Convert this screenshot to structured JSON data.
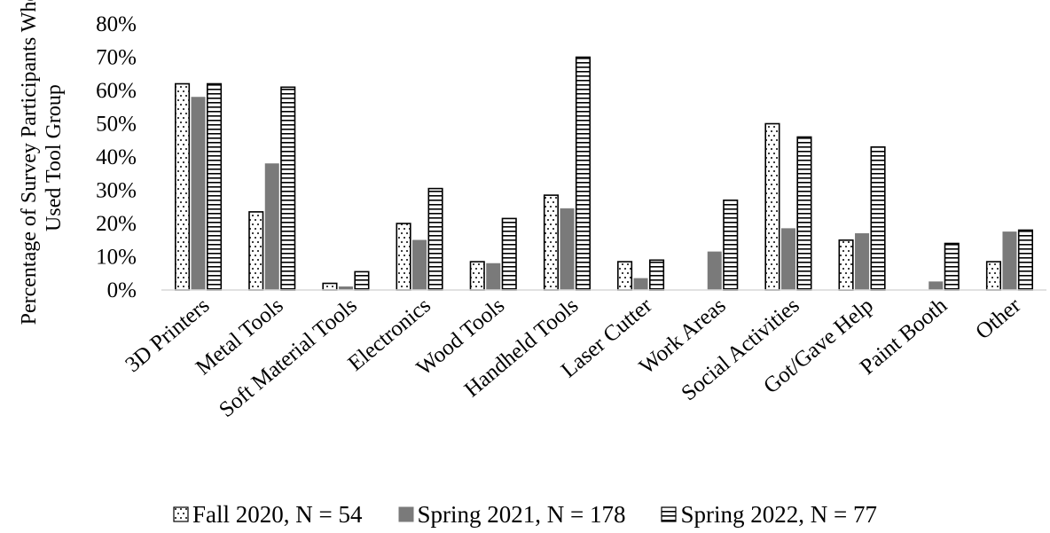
{
  "chart_data": {
    "type": "bar",
    "ylabel_lines": [
      "Percentage  of Survey Participants Who",
      "Used Tool Group"
    ],
    "ylim": [
      0,
      80
    ],
    "yticks": [
      "0%",
      "10%",
      "20%",
      "30%",
      "40%",
      "50%",
      "60%",
      "70%",
      "80%"
    ],
    "grid": false,
    "legend_position": "bottom",
    "categories": [
      "3D Printers",
      "Metal Tools",
      "Soft Material Tools",
      "Electronics",
      "Wood Tools",
      "Handheld Tools",
      "Laser Cutter",
      "Work Areas",
      "Social Activities",
      "Got/Gave Help",
      "Paint Booth",
      "Other"
    ],
    "series": [
      {
        "name": "Fall 2020, N = 54",
        "pattern": "dots",
        "values": [
          62,
          23.5,
          2,
          20,
          8.5,
          28.5,
          8.5,
          0,
          50,
          15,
          0,
          8.5
        ]
      },
      {
        "name": "Spring 2021, N = 178",
        "pattern": "solid",
        "values": [
          58,
          38,
          1,
          15,
          8,
          24.5,
          3.5,
          11.5,
          18.5,
          17,
          2.5,
          17.5
        ]
      },
      {
        "name": "Spring 2022, N = 77",
        "pattern": "hlines",
        "values": [
          62,
          61,
          5.5,
          30.5,
          21.5,
          70,
          9,
          27,
          46,
          43,
          14,
          18
        ]
      }
    ],
    "colors": {
      "solid_fill": "#7a7a7a",
      "outline": "#000000",
      "axis": "#d9d9d9"
    }
  }
}
